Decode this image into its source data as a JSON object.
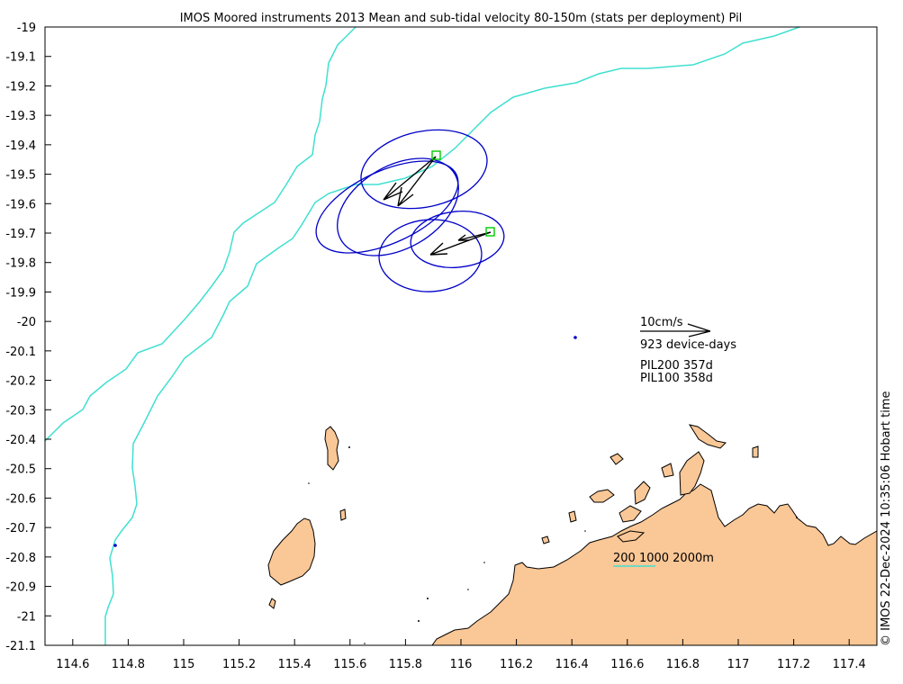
{
  "title": "IMOS Moored instruments 2013 Mean and sub-tidal velocity 80-150m (stats per deployment) Pil",
  "axes": {
    "x_ticks": [
      "114.6",
      "114.8",
      "115",
      "115.2",
      "115.4",
      "115.6",
      "115.8",
      "116",
      "116.2",
      "116.4",
      "116.6",
      "116.8",
      "117",
      "117.2",
      "117.4"
    ],
    "y_ticks": [
      "-19",
      "-19.1",
      "-19.2",
      "-19.3",
      "-19.4",
      "-19.5",
      "-19.6",
      "-19.7",
      "-19.8",
      "-19.9",
      "-20",
      "-20.1",
      "-20.2",
      "-20.3",
      "-20.4",
      "-20.5",
      "-20.6",
      "-20.7",
      "-20.8",
      "-20.9",
      "-21",
      "-21.1"
    ],
    "x_range": [
      114.5,
      117.5
    ],
    "y_range": [
      -21.1,
      -19.0
    ]
  },
  "legend": {
    "scale_label": "10cm/s",
    "device_days": "923 device-days",
    "deployments": [
      "PIL200 357d",
      "PIL100 358d"
    ],
    "bathymetry_label": "200 1000 2000m"
  },
  "timestamp": "© IMOS 22-Dec-2024 10:35:06 Hobart time",
  "colors": {
    "land": "#fac796",
    "isobath": "#40e0d0",
    "ellipse": "#0000c8",
    "mooring": "#00cc00",
    "arrow": "#000000"
  },
  "moorings": [
    {
      "name": "PIL200",
      "lon": 115.91,
      "lat": -19.43
    },
    {
      "name": "PIL100",
      "lon": 116.11,
      "lat": -19.695
    }
  ]
}
